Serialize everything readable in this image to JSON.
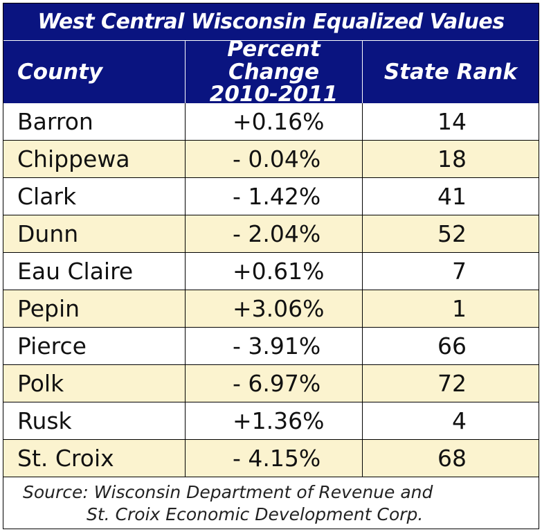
{
  "title": "West Central Wisconsin Equalized Values",
  "headers": {
    "county": "County",
    "percent_change_line1": "Percent Change",
    "percent_change_line2": "2010-2011",
    "state_rank": "State Rank"
  },
  "rows": [
    {
      "county": "Barron",
      "change": "+0.16%",
      "rank": "14"
    },
    {
      "county": "Chippewa",
      "change": "- 0.04%",
      "rank": "18"
    },
    {
      "county": "Clark",
      "change": "- 1.42%",
      "rank": "41"
    },
    {
      "county": "Dunn",
      "change": "- 2.04%",
      "rank": "52"
    },
    {
      "county": "Eau Claire",
      "change": "+0.61%",
      "rank": "7"
    },
    {
      "county": "Pepin",
      "change": "+3.06%",
      "rank": "1"
    },
    {
      "county": "Pierce",
      "change": "- 3.91%",
      "rank": "66"
    },
    {
      "county": "Polk",
      "change": "- 6.97%",
      "rank": "72"
    },
    {
      "county": "Rusk",
      "change": "+1.36%",
      "rank": "4"
    },
    {
      "county": "St. Croix",
      "change": "- 4.15%",
      "rank": "68"
    }
  ],
  "source": {
    "line1": "Source: Wisconsin Department of Revenue and",
    "line2": "St. Croix Economic Development Corp."
  },
  "colors": {
    "header_bg": "#0a1480",
    "alt_row_bg": "#fbf3cf"
  }
}
